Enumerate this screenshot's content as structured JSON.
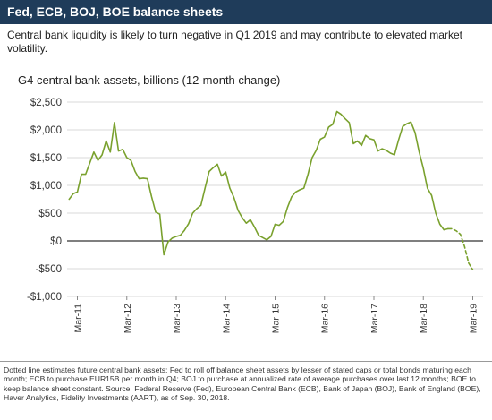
{
  "header": {
    "title": "Fed, ECB, BOJ, BOE balance sheets"
  },
  "subtitle": "Central bank liquidity is likely to turn negative in Q1 2019 and may contribute to elevated market volatility.",
  "footnote": "Dotted line estimates future central bank assets: Fed to roll off balance sheet assets by lesser of stated caps or total bonds maturing each month; ECB to purchase EUR15B per month in Q4; BOJ to purchase at annualized rate of average purchases over last 12 months; BOE to keep balance sheet constant. Source: Federal Reserve (Fed), European Central Bank (ECB), Bank of Japan (BOJ), Bank of England (BOE), Haver Analytics, Fidelity Investments (AART), as of Sep. 30, 2018.",
  "colors": {
    "header_bg": "#1f3c5a",
    "line": "#7aa12e",
    "zero_line": "#333333",
    "grid": "#d9d9d9"
  },
  "chart_data": {
    "type": "line",
    "title": "G4 central bank assets, billions (12-month change)",
    "xlabel": "",
    "ylabel": "",
    "ylim": [
      -1000,
      2500
    ],
    "grid": true,
    "y_tick_labels": [
      "$2,500",
      "$2,000",
      "$1,500",
      "$1,000",
      "$500",
      "$0",
      "-$500",
      "-$1,000"
    ],
    "y_tick_values": [
      2500,
      2000,
      1500,
      1000,
      500,
      0,
      -500,
      -1000
    ],
    "x_tick_labels": [
      "Mar-11",
      "Mar-12",
      "Mar-13",
      "Mar-14",
      "Mar-15",
      "Mar-16",
      "Mar-17",
      "Mar-18",
      "Mar-19"
    ],
    "series": [
      {
        "style": "solid",
        "x": [
          "2011-01",
          "2011-02",
          "2011-03",
          "2011-04",
          "2011-05",
          "2011-06",
          "2011-07",
          "2011-08",
          "2011-09",
          "2011-10",
          "2011-11",
          "2011-12",
          "2012-01",
          "2012-02",
          "2012-03",
          "2012-04",
          "2012-05",
          "2012-06",
          "2012-07",
          "2012-08",
          "2012-09",
          "2012-10",
          "2012-11",
          "2012-12",
          "2013-01",
          "2013-02",
          "2013-03",
          "2013-04",
          "2013-05",
          "2013-06",
          "2013-07",
          "2013-08",
          "2013-09",
          "2013-10",
          "2013-11",
          "2013-12",
          "2014-01",
          "2014-02",
          "2014-03",
          "2014-04",
          "2014-05",
          "2014-06",
          "2014-07",
          "2014-08",
          "2014-09",
          "2014-10",
          "2014-11",
          "2014-12",
          "2015-01",
          "2015-02",
          "2015-03",
          "2015-04",
          "2015-05",
          "2015-06",
          "2015-07",
          "2015-08",
          "2015-09",
          "2015-10",
          "2015-11",
          "2015-12",
          "2016-01",
          "2016-02",
          "2016-03",
          "2016-04",
          "2016-05",
          "2016-06",
          "2016-07",
          "2016-08",
          "2016-09",
          "2016-10",
          "2016-11",
          "2016-12",
          "2017-01",
          "2017-02",
          "2017-03",
          "2017-04",
          "2017-05",
          "2017-06",
          "2017-07",
          "2017-08",
          "2017-09",
          "2017-10",
          "2017-11",
          "2017-12",
          "2018-01",
          "2018-02",
          "2018-03",
          "2018-04",
          "2018-05",
          "2018-06",
          "2018-07",
          "2018-08",
          "2018-09"
        ],
        "values": [
          750,
          850,
          880,
          1200,
          1200,
          1400,
          1600,
          1450,
          1550,
          1800,
          1600,
          2130,
          1620,
          1650,
          1500,
          1450,
          1250,
          1120,
          1130,
          1120,
          800,
          520,
          480,
          -250,
          -20,
          50,
          80,
          100,
          190,
          310,
          500,
          580,
          640,
          950,
          1250,
          1320,
          1380,
          1170,
          1240,
          950,
          780,
          550,
          420,
          320,
          380,
          250,
          100,
          60,
          20,
          80,
          300,
          280,
          350,
          600,
          790,
          880,
          920,
          950,
          1200,
          1500,
          1630,
          1830,
          1870,
          2050,
          2100,
          2330,
          2280,
          2200,
          2130,
          1750,
          1800,
          1720,
          1900,
          1840,
          1820,
          1620,
          1660,
          1630,
          1580,
          1550,
          1820,
          2060,
          2110,
          2140,
          1950,
          1600,
          1310,
          950,
          820,
          500,
          300,
          200,
          220
        ]
      },
      {
        "style": "dotted",
        "x": [
          "2018-09",
          "2018-10",
          "2018-11",
          "2018-12",
          "2019-01",
          "2019-02",
          "2019-03"
        ],
        "values": [
          220,
          220,
          180,
          120,
          -100,
          -400,
          -520
        ]
      }
    ]
  }
}
